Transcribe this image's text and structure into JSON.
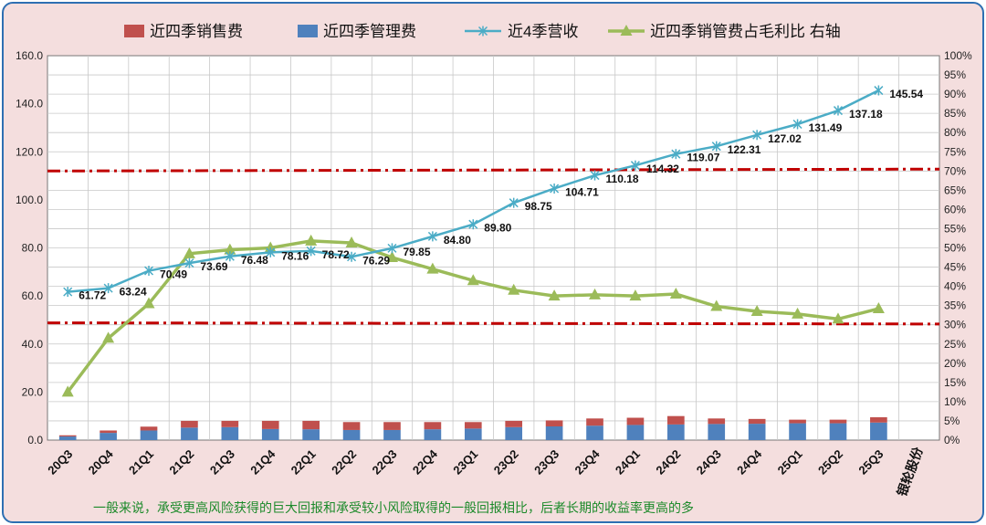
{
  "legend": {
    "sales_fee": "近四季销售费",
    "mgmt_fee": "近四季管理费",
    "revenue": "近4季营收",
    "ratio": "近四季销管费占毛利比  右轴"
  },
  "footnote": "一般来说，承受更高风险获得的巨大回报和承受较小风险取得的一般回报相比，后者长期的收益率更高的多",
  "brand": "银轮股份",
  "colors": {
    "sales_fee": "#c0504d",
    "mgmt_fee": "#4f81bd",
    "revenue": "#4bacc6",
    "ratio": "#9bbb59",
    "ref_line": "#c00000",
    "background": "#f4dede",
    "border": "#2e6fb2"
  },
  "chart_data": {
    "type": "bar",
    "categories": [
      "20Q3",
      "20Q4",
      "21Q1",
      "21Q2",
      "21Q3",
      "21Q4",
      "22Q1",
      "22Q2",
      "22Q3",
      "22Q4",
      "23Q1",
      "23Q2",
      "23Q3",
      "23Q4",
      "24Q1",
      "24Q2",
      "24Q3",
      "24Q4",
      "25Q1",
      "25Q2",
      "25Q3"
    ],
    "y_left": {
      "min": 0,
      "max": 160,
      "step": 20,
      "tick_labels": [
        "0.0",
        "20.0",
        "40.0",
        "60.0",
        "80.0",
        "100.0",
        "120.0",
        "140.0",
        "160.0"
      ]
    },
    "y_right": {
      "min": 0,
      "max": 100,
      "step": 5,
      "unit": "%"
    },
    "grid": true,
    "legend_position": "top",
    "series": [
      {
        "name": "近四季销售费",
        "kind": "stacked_bar",
        "axis": "left",
        "values": [
          0.5,
          1.0,
          1.6,
          2.8,
          2.6,
          3.4,
          3.5,
          3.3,
          3.3,
          3.0,
          2.7,
          2.6,
          2.5,
          3.0,
          3.0,
          3.5,
          2.3,
          2.0,
          1.5,
          1.5,
          2.2
        ]
      },
      {
        "name": "近四季管理费",
        "kind": "stacked_bar",
        "axis": "left",
        "values": [
          1.5,
          3.0,
          4.0,
          5.2,
          5.4,
          4.6,
          4.5,
          4.2,
          4.2,
          4.5,
          4.8,
          5.4,
          5.7,
          6.0,
          6.3,
          6.5,
          6.7,
          6.8,
          7.0,
          7.0,
          7.3
        ]
      },
      {
        "name": "近4季营收",
        "kind": "line",
        "axis": "left",
        "values": [
          61.72,
          63.24,
          70.49,
          73.69,
          76.48,
          78.16,
          78.72,
          76.29,
          79.85,
          84.8,
          89.8,
          98.75,
          104.71,
          110.18,
          114.32,
          119.07,
          122.31,
          127.02,
          131.49,
          137.18,
          145.54
        ],
        "data_labels": [
          "61.72",
          "63.24",
          "70.49",
          "73.69",
          "76.48",
          "78.16",
          "78.72",
          "76.29",
          "79.85",
          "84.80",
          "89.80",
          "98.75",
          "104.71",
          "110.18",
          "114.32",
          "119.07",
          "122.31",
          "127.02",
          "131.49",
          "137.18",
          "145.54"
        ]
      },
      {
        "name": "近四季销管费占毛利比  右轴",
        "kind": "line",
        "axis": "right",
        "values": [
          12.5,
          26.5,
          35.5,
          48.5,
          49.5,
          50.0,
          51.8,
          51.3,
          47.5,
          44.5,
          41.5,
          39.0,
          37.5,
          37.8,
          37.5,
          38.0,
          34.8,
          33.5,
          32.8,
          31.5,
          34.2
        ]
      }
    ],
    "reference_lines": [
      {
        "axis": "right",
        "start_value": 70.0,
        "end_value": 70.5
      },
      {
        "axis": "right",
        "start_value": 30.5,
        "end_value": 30.2
      }
    ]
  }
}
